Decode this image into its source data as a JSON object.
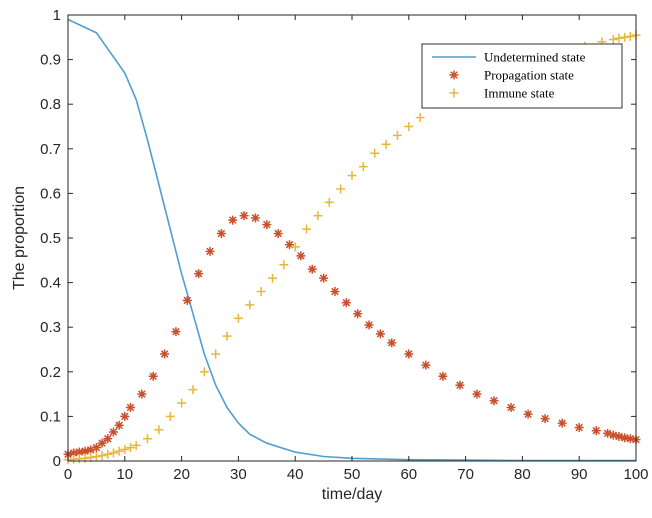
{
  "chart_data": {
    "type": "line",
    "title": "",
    "xlabel": "time/day",
    "ylabel": "The proportion",
    "xlim": [
      0,
      100
    ],
    "ylim": [
      0,
      1
    ],
    "xticks": [
      "0",
      "10",
      "20",
      "30",
      "40",
      "50",
      "60",
      "70",
      "80",
      "90",
      "100"
    ],
    "yticks": [
      "0",
      "0.1",
      "0.2",
      "0.3",
      "0.4",
      "0.5",
      "0.6",
      "0.7",
      "0.8",
      "0.9",
      "1"
    ],
    "grid": false,
    "legend_position": "top-right",
    "series": [
      {
        "name": "Undetermined state",
        "marker": "line",
        "color": "#4f9fd0",
        "x": [
          0,
          5,
          10,
          12,
          14,
          16,
          18,
          20,
          22,
          24,
          26,
          28,
          30,
          32,
          35,
          40,
          45,
          50,
          60,
          70,
          80,
          90,
          100
        ],
        "y": [
          0.99,
          0.96,
          0.87,
          0.81,
          0.72,
          0.62,
          0.52,
          0.42,
          0.33,
          0.24,
          0.17,
          0.12,
          0.085,
          0.06,
          0.04,
          0.02,
          0.01,
          0.006,
          0.003,
          0.002,
          0.001,
          0.001,
          0.001
        ]
      },
      {
        "name": "Propagation state",
        "marker": "asterisk",
        "color": "#c8502b",
        "x": [
          0,
          1,
          2,
          3,
          4,
          5,
          6,
          7,
          8,
          9,
          10,
          11,
          13,
          15,
          17,
          19,
          21,
          23,
          25,
          27,
          29,
          31,
          33,
          35,
          37,
          39,
          41,
          43,
          45,
          47,
          49,
          51,
          53,
          55,
          57,
          60,
          63,
          66,
          69,
          72,
          75,
          78,
          81,
          84,
          87,
          90,
          93,
          95,
          96,
          97,
          98,
          99,
          100
        ],
        "y": [
          0.015,
          0.018,
          0.02,
          0.022,
          0.025,
          0.03,
          0.04,
          0.05,
          0.065,
          0.08,
          0.1,
          0.12,
          0.15,
          0.19,
          0.24,
          0.29,
          0.36,
          0.42,
          0.47,
          0.51,
          0.54,
          0.55,
          0.545,
          0.53,
          0.51,
          0.485,
          0.46,
          0.43,
          0.41,
          0.38,
          0.355,
          0.33,
          0.305,
          0.285,
          0.265,
          0.24,
          0.215,
          0.19,
          0.17,
          0.15,
          0.135,
          0.12,
          0.105,
          0.095,
          0.085,
          0.075,
          0.068,
          0.062,
          0.058,
          0.055,
          0.052,
          0.05,
          0.048
        ]
      },
      {
        "name": "Immune state",
        "marker": "plus",
        "color": "#e8b63a",
        "x": [
          0,
          1,
          2,
          3,
          4,
          5,
          6,
          7,
          8,
          9,
          10,
          11,
          12,
          14,
          16,
          18,
          20,
          22,
          24,
          26,
          28,
          30,
          32,
          34,
          36,
          38,
          40,
          42,
          44,
          46,
          48,
          50,
          52,
          54,
          56,
          58,
          60,
          62,
          65,
          68,
          70,
          73,
          76,
          79,
          82,
          85,
          88,
          91,
          94,
          96,
          97,
          98,
          99,
          100
        ],
        "y": [
          0.003,
          0.004,
          0.005,
          0.006,
          0.008,
          0.01,
          0.012,
          0.015,
          0.018,
          0.022,
          0.026,
          0.03,
          0.035,
          0.05,
          0.07,
          0.1,
          0.13,
          0.16,
          0.2,
          0.24,
          0.28,
          0.32,
          0.35,
          0.38,
          0.41,
          0.44,
          0.48,
          0.52,
          0.55,
          0.58,
          0.61,
          0.64,
          0.66,
          0.69,
          0.71,
          0.73,
          0.75,
          0.77,
          0.8,
          0.82,
          0.84,
          0.86,
          0.87,
          0.885,
          0.9,
          0.91,
          0.92,
          0.93,
          0.94,
          0.945,
          0.948,
          0.95,
          0.952,
          0.955
        ]
      }
    ]
  }
}
